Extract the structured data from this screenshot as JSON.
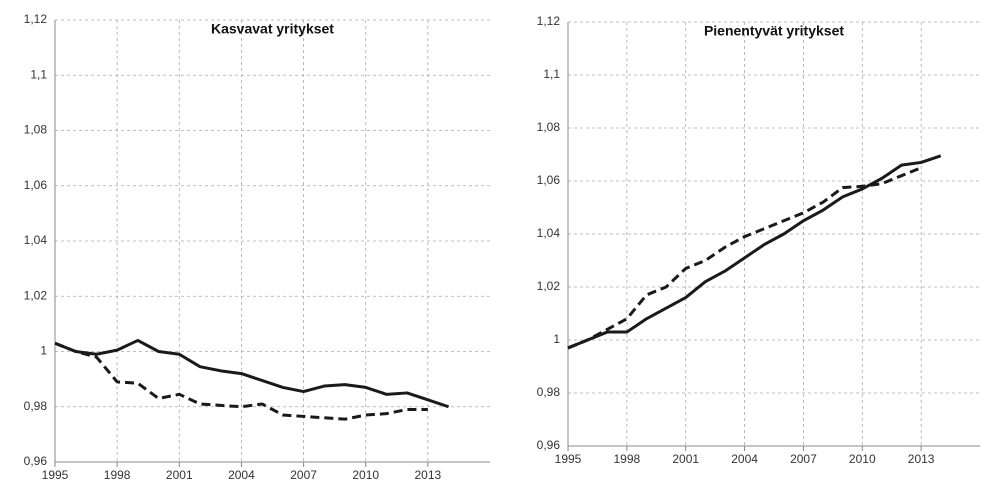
{
  "chart_data": [
    {
      "type": "line",
      "title": "Kasvavat yritykset",
      "x": [
        1995,
        1996,
        1997,
        1998,
        1999,
        2000,
        2001,
        2002,
        2003,
        2004,
        2005,
        2006,
        2007,
        2008,
        2009,
        2010,
        2011,
        2012,
        2013,
        2014
      ],
      "series": [
        {
          "color": "#1a1a1a",
          "dash": false,
          "values": [
            1.003,
            1.0,
            0.999,
            1.0005,
            1.004,
            1.0,
            0.999,
            0.9945,
            0.993,
            0.992,
            0.9895,
            0.987,
            0.9855,
            0.9875,
            0.988,
            0.987,
            0.9845,
            0.985,
            0.9825,
            0.98
          ]
        },
        {
          "color": "#1a1a1a",
          "dash": true,
          "values": [
            1.003,
            1.0,
            0.998,
            0.989,
            0.9885,
            0.983,
            0.9845,
            0.981,
            0.9805,
            0.98,
            0.981,
            0.977,
            0.9765,
            0.976,
            0.9755,
            0.977,
            0.9775,
            0.979,
            0.979,
            null
          ]
        }
      ],
      "xlim": [
        1995,
        2016
      ],
      "xticks": [
        1995,
        1998,
        2001,
        2004,
        2007,
        2010,
        2013
      ],
      "ylim": [
        0.96,
        1.12
      ],
      "yticks": [
        {
          "value": 0.96,
          "label": "0,96"
        },
        {
          "value": 0.98,
          "label": "0,98"
        },
        1,
        {
          "value": 1.02,
          "label": "1,02"
        },
        {
          "value": 1.04,
          "label": "1,04"
        },
        {
          "value": 1.06,
          "label": "1,06"
        },
        {
          "value": 1.08,
          "label": "1,08"
        },
        {
          "value": 1.1,
          "label": "1,1"
        },
        {
          "value": 1.12,
          "label": "1,12"
        }
      ],
      "grid": true
    },
    {
      "type": "line",
      "title": "Pienentyvät yritykset",
      "x": [
        1995,
        1996,
        1997,
        1998,
        1999,
        2000,
        2001,
        2002,
        2003,
        2004,
        2005,
        2006,
        2007,
        2008,
        2009,
        2010,
        2011,
        2012,
        2013,
        2014
      ],
      "series": [
        {
          "color": "#1a1a1a",
          "dash": false,
          "values": [
            0.997,
            1.0,
            1.003,
            1.003,
            1.008,
            1.012,
            1.016,
            1.022,
            1.026,
            1.031,
            1.036,
            1.04,
            1.045,
            1.049,
            1.054,
            1.057,
            1.061,
            1.066,
            1.067,
            1.0695
          ]
        },
        {
          "color": "#1a1a1a",
          "dash": true,
          "values": [
            0.997,
            1.0,
            1.004,
            1.008,
            1.017,
            1.02,
            1.027,
            1.03,
            1.035,
            1.039,
            1.042,
            1.045,
            1.048,
            1.052,
            1.0575,
            1.058,
            1.059,
            1.062,
            1.065,
            null
          ]
        }
      ],
      "xlim": [
        1995,
        2016
      ],
      "xticks": [
        1995,
        1998,
        2001,
        2004,
        2007,
        2010,
        2013
      ],
      "ylim": [
        0.96,
        1.12
      ],
      "yticks": [
        {
          "value": 0.96,
          "label": "0,96"
        },
        {
          "value": 0.98,
          "label": "0,98"
        },
        1,
        {
          "value": 1.02,
          "label": "1,02"
        },
        {
          "value": 1.04,
          "label": "1,04"
        },
        {
          "value": 1.06,
          "label": "1,06"
        },
        {
          "value": 1.08,
          "label": "1,08"
        },
        {
          "value": 1.1,
          "label": "1,1"
        },
        {
          "value": 1.12,
          "label": "1,12"
        }
      ],
      "grid": true
    }
  ]
}
